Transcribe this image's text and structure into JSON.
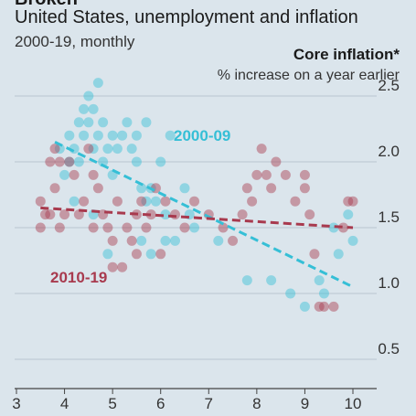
{
  "header": {
    "top_cut": "Broken",
    "title": "United States, unemployment and inflation",
    "subtitle": "2000-19, monthly",
    "y_title": "Core inflation*",
    "y_sub": "% increase on a year earlier"
  },
  "chart_data": {
    "type": "scatter",
    "title": "United States, unemployment and inflation",
    "subtitle": "2000-19, monthly",
    "xlabel": "",
    "ylabel": "Core inflation* % increase on a year earlier",
    "xlim": [
      3,
      10
    ],
    "ylim": [
      0.3,
      2.5
    ],
    "x_ticks": [
      3,
      4,
      5,
      6,
      7,
      8,
      9,
      10
    ],
    "y_ticks": [
      0.5,
      1.0,
      1.5,
      2.0,
      2.5
    ],
    "y_tick_labels": [
      "0.5",
      "1.0",
      "1.5",
      "2.0",
      "2.5"
    ],
    "grid": "horizontal",
    "colors": {
      "period_2000_09": "#35bfd6",
      "period_2010_19": "#a83a4e",
      "background": "#dbe5ec"
    },
    "series": [
      {
        "name": "2000-09",
        "points": [
          [
            3.9,
            2.1
          ],
          [
            4.0,
            1.9
          ],
          [
            4.1,
            2.2
          ],
          [
            4.1,
            2.0
          ],
          [
            4.2,
            2.1
          ],
          [
            4.3,
            2.3
          ],
          [
            4.3,
            2.0
          ],
          [
            4.4,
            2.4
          ],
          [
            4.4,
            2.2
          ],
          [
            4.5,
            2.5
          ],
          [
            4.5,
            2.3
          ],
          [
            4.6,
            2.4
          ],
          [
            4.6,
            2.1
          ],
          [
            4.7,
            2.6
          ],
          [
            4.7,
            2.2
          ],
          [
            4.8,
            2.3
          ],
          [
            4.8,
            2.0
          ],
          [
            4.9,
            2.1
          ],
          [
            5.0,
            2.2
          ],
          [
            5.0,
            1.9
          ],
          [
            5.1,
            2.1
          ],
          [
            5.2,
            2.2
          ],
          [
            5.3,
            2.3
          ],
          [
            5.4,
            2.1
          ],
          [
            5.5,
            2.0
          ],
          [
            5.5,
            2.2
          ],
          [
            5.6,
            1.8
          ],
          [
            5.7,
            2.3
          ],
          [
            5.7,
            1.7
          ],
          [
            5.8,
            1.8
          ],
          [
            5.9,
            1.7
          ],
          [
            6.0,
            2.0
          ],
          [
            6.1,
            1.6
          ],
          [
            6.1,
            1.4
          ],
          [
            6.2,
            2.2
          ],
          [
            6.3,
            1.4
          ],
          [
            6.5,
            1.8
          ],
          [
            6.6,
            1.6
          ],
          [
            6.7,
            1.5
          ],
          [
            7.2,
            1.4
          ],
          [
            7.8,
            1.1
          ],
          [
            8.3,
            1.1
          ],
          [
            8.7,
            1.0
          ],
          [
            9.0,
            0.9
          ],
          [
            9.3,
            1.1
          ],
          [
            9.4,
            1.0
          ],
          [
            9.6,
            1.5
          ],
          [
            9.7,
            1.3
          ],
          [
            9.9,
            1.6
          ],
          [
            10.0,
            1.4
          ],
          [
            5.8,
            1.3
          ],
          [
            5.6,
            1.4
          ],
          [
            4.6,
            1.6
          ],
          [
            4.2,
            1.7
          ],
          [
            4.9,
            1.3
          ]
        ]
      },
      {
        "name": "2010-19",
        "points": [
          [
            3.5,
            1.7
          ],
          [
            3.5,
            1.5
          ],
          [
            3.6,
            1.6
          ],
          [
            3.7,
            2.0
          ],
          [
            3.7,
            1.6
          ],
          [
            3.8,
            2.1
          ],
          [
            3.8,
            1.8
          ],
          [
            3.9,
            2.0
          ],
          [
            3.9,
            1.5
          ],
          [
            4.0,
            1.6
          ],
          [
            4.1,
            2.0
          ],
          [
            4.2,
            1.9
          ],
          [
            4.3,
            1.6
          ],
          [
            4.4,
            1.7
          ],
          [
            4.5,
            2.1
          ],
          [
            4.6,
            1.9
          ],
          [
            4.7,
            1.8
          ],
          [
            4.8,
            1.6
          ],
          [
            4.9,
            1.5
          ],
          [
            5.0,
            1.2
          ],
          [
            5.0,
            1.4
          ],
          [
            5.1,
            1.7
          ],
          [
            5.2,
            1.2
          ],
          [
            5.3,
            1.5
          ],
          [
            5.4,
            1.4
          ],
          [
            5.5,
            1.3
          ],
          [
            5.6,
            1.7
          ],
          [
            5.7,
            1.5
          ],
          [
            5.8,
            1.6
          ],
          [
            5.9,
            1.8
          ],
          [
            6.0,
            1.3
          ],
          [
            6.1,
            1.7
          ],
          [
            6.3,
            1.6
          ],
          [
            6.5,
            1.5
          ],
          [
            6.7,
            1.7
          ],
          [
            7.0,
            1.6
          ],
          [
            7.3,
            1.5
          ],
          [
            7.5,
            1.4
          ],
          [
            7.7,
            1.6
          ],
          [
            7.8,
            1.8
          ],
          [
            7.9,
            1.7
          ],
          [
            8.0,
            1.9
          ],
          [
            8.1,
            2.1
          ],
          [
            8.2,
            1.9
          ],
          [
            8.3,
            1.8
          ],
          [
            8.4,
            2.0
          ],
          [
            8.6,
            1.9
          ],
          [
            8.8,
            1.7
          ],
          [
            9.0,
            1.8
          ],
          [
            9.0,
            1.9
          ],
          [
            9.1,
            1.6
          ],
          [
            9.2,
            1.3
          ],
          [
            9.3,
            0.9
          ],
          [
            9.4,
            0.9
          ],
          [
            9.6,
            0.9
          ],
          [
            9.8,
            1.5
          ],
          [
            9.9,
            1.7
          ],
          [
            10.0,
            1.7
          ],
          [
            5.5,
            1.6
          ],
          [
            4.6,
            1.5
          ]
        ]
      }
    ],
    "trend_lines": [
      {
        "name": "2000-09",
        "from": [
          3.8,
          2.15
        ],
        "to": [
          10.0,
          1.05
        ],
        "label": "2000-09",
        "style": "dashed"
      },
      {
        "name": "2010-19",
        "from": [
          3.5,
          1.65
        ],
        "to": [
          10.0,
          1.5
        ],
        "label": "2010-19",
        "style": "dashed"
      }
    ]
  }
}
